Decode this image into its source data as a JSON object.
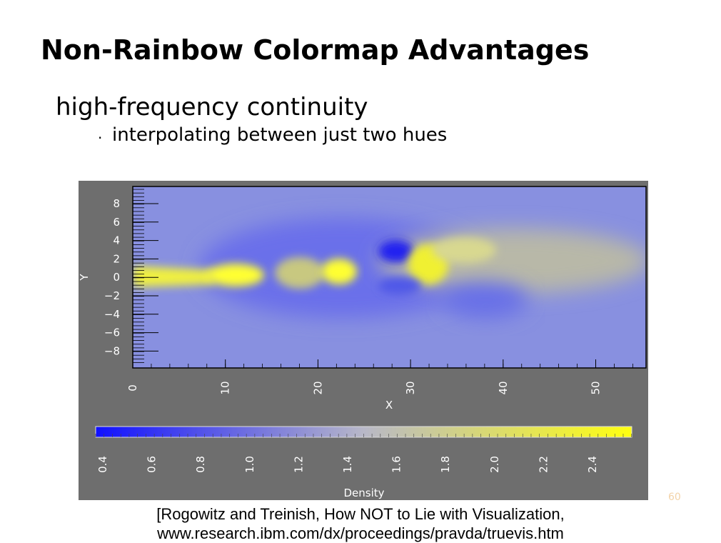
{
  "slide": {
    "title": "Non-Rainbow Colormap Advantages",
    "subtitle": "high-frequency continuity",
    "bullet": "interpolating between just two hues",
    "figure": {
      "y_label": "Y",
      "y_ticks": [
        "8",
        "6",
        "4",
        "2",
        "0",
        "−2",
        "−4",
        "−6",
        "−8"
      ],
      "x_label": "X",
      "x_ticks": [
        "0",
        "10",
        "20",
        "30",
        "40",
        "50"
      ],
      "colorbar_ticks": [
        "0.4",
        "0.6",
        "0.8",
        "1.0",
        "1.2",
        "1.4",
        "1.6",
        "1.8",
        "2.0",
        "2.2",
        "2.4"
      ],
      "colorbar_label": "Density"
    },
    "citation": [
      "[Rogowitz and Treinish, How NOT to Lie with Visualization,",
      "www.research.ibm.com/dx/proceedings/pravda/truevis.htm"
    ],
    "page_number": "60"
  }
}
